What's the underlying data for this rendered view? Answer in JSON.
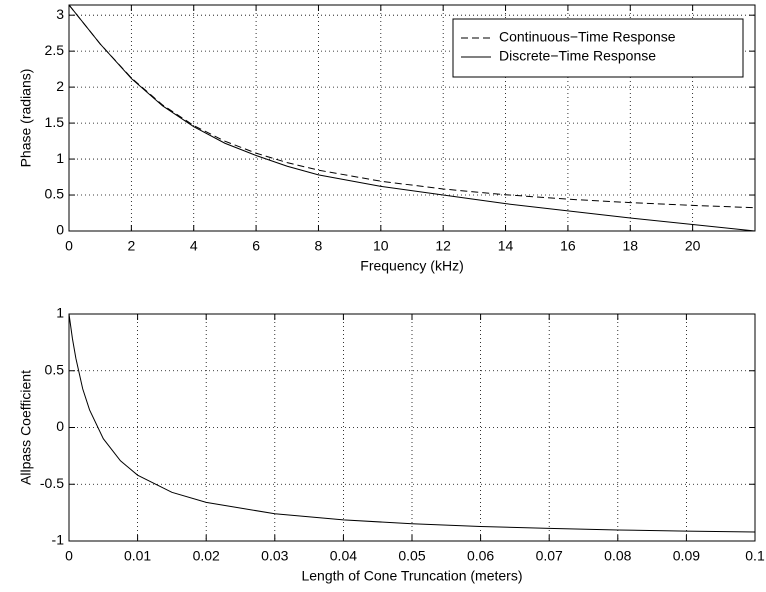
{
  "chart_data": [
    {
      "type": "line",
      "xlabel": "Frequency (kHz)",
      "ylabel": "Phase (radians)",
      "x": [
        0,
        1,
        2,
        3,
        4,
        5,
        6,
        7,
        8,
        10,
        12,
        14,
        16,
        18,
        20,
        22
      ],
      "series": [
        {
          "name": "Continuous−Time Response",
          "color": "#000000",
          "linestyle": "dashed",
          "values": [
            3.142,
            2.6,
            2.128,
            1.752,
            1.466,
            1.248,
            1.082,
            0.95,
            0.846,
            0.692,
            0.584,
            0.504,
            0.442,
            0.395,
            0.356,
            0.324
          ]
        },
        {
          "name": "Discrete−Time Response",
          "color": "#000000",
          "linestyle": "solid",
          "values": [
            3.142,
            2.6,
            2.12,
            1.74,
            1.45,
            1.22,
            1.05,
            0.9,
            0.78,
            0.62,
            0.5,
            0.38,
            0.28,
            0.18,
            0.09,
            0
          ]
        }
      ],
      "xlim": [
        0,
        22
      ],
      "ylim": [
        0,
        3.1416
      ],
      "xticks": [
        0,
        2,
        4,
        6,
        8,
        10,
        12,
        14,
        16,
        18,
        20
      ],
      "yticks": [
        0,
        0.5,
        1,
        1.5,
        2,
        2.5,
        3
      ],
      "grid": true,
      "legend": "upper right"
    },
    {
      "type": "line",
      "xlabel": "Length of Cone Truncation (meters)",
      "ylabel": "Allpass Coefficient",
      "x": [
        0,
        0.0005,
        0.001,
        0.002,
        0.003,
        0.005,
        0.0075,
        0.01,
        0.015,
        0.02,
        0.03,
        0.04,
        0.05,
        0.06,
        0.07,
        0.08,
        0.09,
        0.1
      ],
      "series": [
        {
          "color": "#000000",
          "linestyle": "solid",
          "values": [
            1,
            0.783,
            0.61,
            0.34,
            0.155,
            -0.099,
            -0.293,
            -0.42,
            -0.571,
            -0.66,
            -0.76,
            -0.814,
            -0.848,
            -0.872,
            -0.889,
            -0.903,
            -0.913,
            -0.921
          ]
        }
      ],
      "xlim": [
        0,
        0.1
      ],
      "ylim": [
        -1,
        1
      ],
      "xticks": [
        0,
        0.01,
        0.02,
        0.03,
        0.04,
        0.05,
        0.06,
        0.07,
        0.08,
        0.09,
        0.1
      ],
      "yticks": [
        -1,
        -0.5,
        0,
        0.5,
        1
      ],
      "grid": true
    }
  ]
}
